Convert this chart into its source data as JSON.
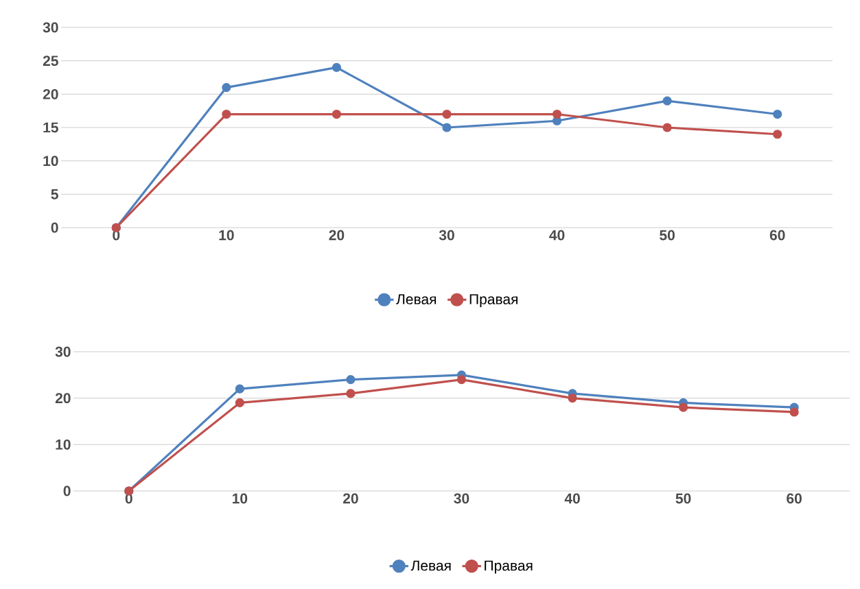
{
  "chart_data": [
    {
      "type": "line",
      "categories": [
        "0",
        "10",
        "20",
        "30",
        "40",
        "50",
        "60"
      ],
      "series": [
        {
          "name": "Левая",
          "color": "#4f81bd",
          "values": [
            0,
            21,
            24,
            15,
            16,
            19,
            17
          ]
        },
        {
          "name": "Правая",
          "color": "#c0504d",
          "values": [
            0,
            17,
            17,
            17,
            17,
            15,
            14
          ]
        }
      ],
      "ylim": [
        0,
        30
      ],
      "yticks": [
        0,
        5,
        10,
        15,
        20,
        25,
        30
      ],
      "grid": "y",
      "legend": "bottom",
      "marker": "circle",
      "line_style": "solid"
    },
    {
      "type": "line",
      "categories": [
        "0",
        "10",
        "20",
        "30",
        "40",
        "50",
        "60"
      ],
      "series": [
        {
          "name": "Левая",
          "color": "#4f81bd",
          "values": [
            0,
            22,
            24,
            25,
            21,
            19,
            18
          ]
        },
        {
          "name": "Правая",
          "color": "#c0504d",
          "values": [
            0,
            19,
            21,
            24,
            20,
            18,
            17
          ]
        }
      ],
      "ylim": [
        0,
        30
      ],
      "yticks": [
        0,
        10,
        20,
        30
      ],
      "grid": "y",
      "legend": "bottom",
      "marker": "circle",
      "line_style": "solid"
    }
  ]
}
